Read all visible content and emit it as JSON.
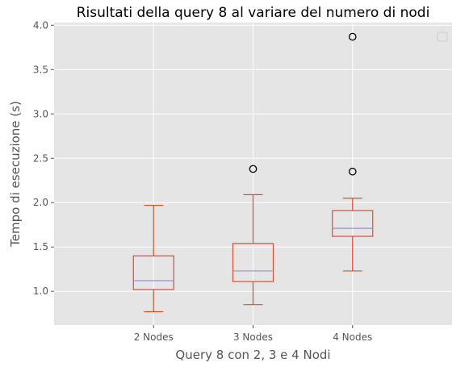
{
  "chart_data": {
    "type": "box",
    "title": "Risultati della query 8 al variare del numero di nodi",
    "xlabel": "Query 8 con 2, 3 e 4 Nodi",
    "ylabel": "Tempo di esecuzione (s)",
    "ylim": [
      0.62,
      4.03
    ],
    "yticks": [
      1.0,
      1.5,
      2.0,
      2.5,
      3.0,
      3.5,
      4.0
    ],
    "grid": true,
    "legend": "top-right (empty)",
    "colors": {
      "background": "#e5e5e5",
      "grid": "#ffffff",
      "box": "#e24a33",
      "median": "#988ed5",
      "flier": "#000000",
      "text": "#555555"
    },
    "categories": [
      "2 Nodes",
      "3 Nodes",
      "4 Nodes"
    ],
    "boxes": [
      {
        "category": "2 Nodes",
        "whisker_low": 0.77,
        "q1": 1.02,
        "median": 1.12,
        "q3": 1.4,
        "whisker_high": 1.97,
        "outliers": []
      },
      {
        "category": "3 Nodes",
        "whisker_low": 0.85,
        "q1": 1.11,
        "median": 1.23,
        "q3": 1.54,
        "whisker_high": 2.09,
        "outliers": [
          2.38
        ]
      },
      {
        "category": "4 Nodes",
        "whisker_low": 1.23,
        "q1": 1.62,
        "median": 1.71,
        "q3": 1.91,
        "whisker_high": 2.05,
        "outliers": [
          2.35,
          3.87
        ]
      }
    ]
  }
}
